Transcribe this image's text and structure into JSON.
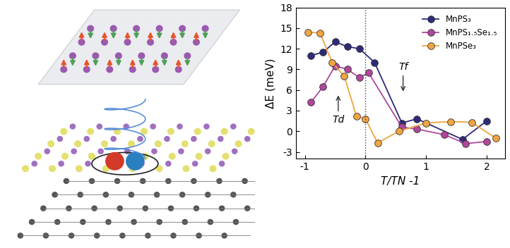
{
  "chart_data": {
    "type": "line",
    "x_label": "T/TN -1",
    "y_label": "ΔE (meV)",
    "xlim": [
      -1.15,
      2.3
    ],
    "xticks": [
      -1,
      0,
      1,
      2
    ],
    "ylim": [
      -4,
      18
    ],
    "yticks": [
      -3,
      0,
      3,
      6,
      9,
      12,
      15,
      18
    ],
    "legend": "upper right",
    "marker": "o",
    "series": [
      {
        "name": "MnPS₃",
        "color": "#2e2a7a",
        "x": [
          -0.9,
          -0.7,
          -0.5,
          -0.3,
          -0.1,
          0.15,
          0.6,
          0.85,
          1.6,
          2.0
        ],
        "values": [
          11,
          11.5,
          13,
          12.3,
          12,
          10,
          1.2,
          1.8,
          -1.2,
          1.5
        ]
      },
      {
        "name": "MnPS₁.₅Se₁.₅",
        "color": "#b0479a",
        "x": [
          -0.9,
          -0.7,
          -0.5,
          -0.3,
          -0.1,
          0.05,
          0.6,
          0.85,
          1.3,
          1.65,
          2.0
        ],
        "values": [
          4.2,
          6.5,
          9.5,
          9,
          7.8,
          8.5,
          0.6,
          0.3,
          -0.5,
          -1.8,
          -1.5
        ]
      },
      {
        "name": "MnPSe₃",
        "color": "#f0a442",
        "x": [
          -0.95,
          -0.75,
          -0.55,
          -0.35,
          -0.15,
          0.0,
          0.2,
          0.55,
          1.0,
          1.4,
          1.75,
          2.15
        ],
        "values": [
          14.4,
          14.3,
          10,
          8,
          2.2,
          1.8,
          -1.7,
          0,
          1.2,
          1.4,
          1.3,
          -1
        ]
      }
    ],
    "vline": 0,
    "annotations": [
      {
        "text": "Td",
        "x": -0.45,
        "y": 5.5,
        "direction": "up"
      },
      {
        "text": "Tf",
        "x": 0.62,
        "y": 5.5,
        "direction": "down"
      }
    ]
  }
}
